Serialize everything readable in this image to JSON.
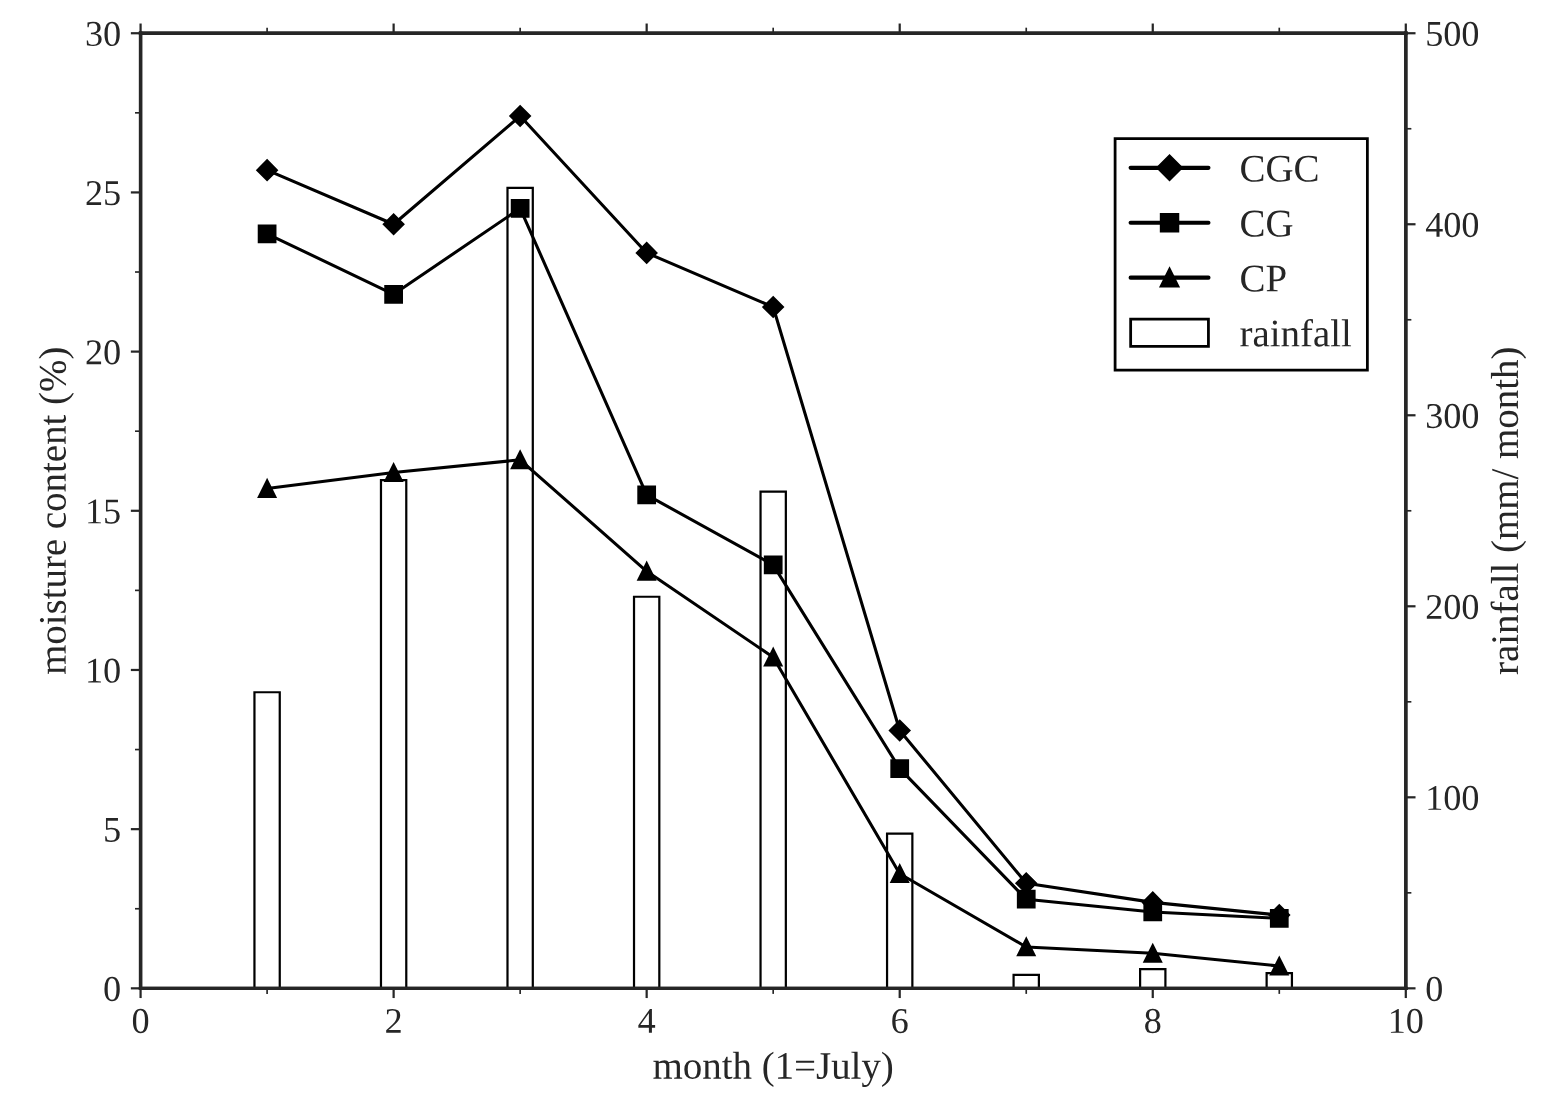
{
  "chart_data": {
    "type": "line",
    "xlabel": "month (1=July)",
    "ylabel": "moisture content (%)",
    "y2label": "rainfall (mm/ month)",
    "x": [
      1,
      2,
      3,
      4,
      5,
      6,
      7,
      8,
      9
    ],
    "series": [
      {
        "name": "CGC",
        "color": "#000000",
        "marker": "diamond",
        "values": [
          25.7,
          24.0,
          27.4,
          23.1,
          21.4,
          8.1,
          3.3,
          2.7,
          2.3
        ]
      },
      {
        "name": "CG",
        "color": "#000000",
        "marker": "square",
        "values": [
          23.7,
          21.8,
          24.5,
          15.5,
          13.3,
          6.9,
          2.8,
          2.4,
          2.2
        ]
      },
      {
        "name": "CP",
        "color": "#000000",
        "marker": "triangle",
        "values": [
          15.7,
          16.2,
          16.6,
          13.1,
          10.4,
          3.6,
          1.3,
          1.1,
          0.7
        ]
      },
      {
        "name": "rainfall",
        "type": "bar",
        "axis": "y2",
        "color": "#ffffff",
        "values": [
          155,
          266,
          419,
          205,
          260,
          81,
          7,
          10,
          8
        ]
      }
    ],
    "xlim": [
      0,
      10
    ],
    "xticks": [
      0,
      2,
      4,
      6,
      8,
      10
    ],
    "ylim": [
      0,
      30
    ],
    "yticks": [
      0,
      5,
      10,
      15,
      20,
      25,
      30
    ],
    "y2lim": [
      0,
      500
    ],
    "y2ticks": [
      0,
      100,
      200,
      300,
      400,
      500
    ],
    "grid": false,
    "legend": "top right"
  }
}
